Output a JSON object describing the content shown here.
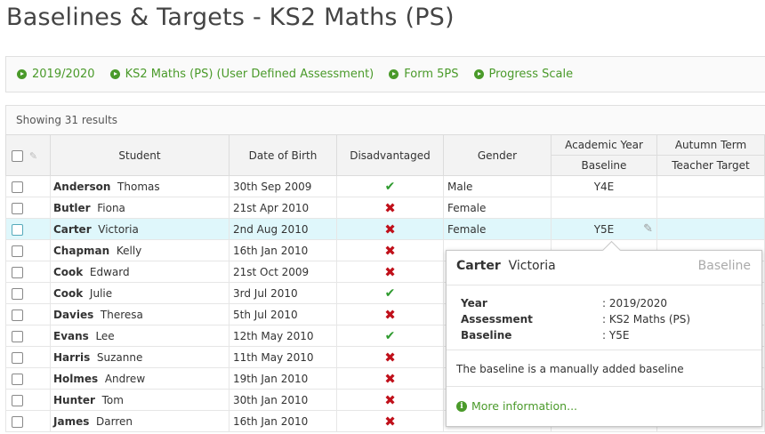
{
  "page": {
    "title": "Baselines & Targets - KS2 Maths (PS)"
  },
  "breadcrumbs": [
    "2019/2020",
    "KS2 Maths (PS) (User Defined Assessment)",
    "Form 5PS",
    "Progress Scale"
  ],
  "results_text": "Showing 31 results",
  "columns": {
    "student": "Student",
    "dob": "Date of Birth",
    "disadvantaged": "Disadvantaged",
    "gender": "Gender",
    "academic_year": "Academic Year",
    "baseline": "Baseline",
    "autumn_term": "Autumn Term",
    "teacher_target": "Teacher Target"
  },
  "rows": [
    {
      "surname": "Anderson",
      "forename": "Thomas",
      "dob": "30th Sep 2009",
      "disadvantaged": false,
      "gender": "Male",
      "baseline": "Y4E"
    },
    {
      "surname": "Butler",
      "forename": "Fiona",
      "dob": "21st Apr 2010",
      "disadvantaged": true,
      "gender": "Female",
      "baseline": ""
    },
    {
      "surname": "Carter",
      "forename": "Victoria",
      "dob": "2nd Aug 2010",
      "disadvantaged": true,
      "gender": "Female",
      "baseline": "Y5E"
    },
    {
      "surname": "Chapman",
      "forename": "Kelly",
      "dob": "16th Jan 2010",
      "disadvantaged": true,
      "gender": "",
      "baseline": ""
    },
    {
      "surname": "Cook",
      "forename": "Edward",
      "dob": "21st Oct 2009",
      "disadvantaged": true,
      "gender": "",
      "baseline": ""
    },
    {
      "surname": "Cook",
      "forename": "Julie",
      "dob": "3rd Jul 2010",
      "disadvantaged": false,
      "gender": "",
      "baseline": ""
    },
    {
      "surname": "Davies",
      "forename": "Theresa",
      "dob": "5th Jul 2010",
      "disadvantaged": true,
      "gender": "",
      "baseline": ""
    },
    {
      "surname": "Evans",
      "forename": "Lee",
      "dob": "12th May 2010",
      "disadvantaged": false,
      "gender": "",
      "baseline": ""
    },
    {
      "surname": "Harris",
      "forename": "Suzanne",
      "dob": "11th May 2010",
      "disadvantaged": true,
      "gender": "",
      "baseline": ""
    },
    {
      "surname": "Holmes",
      "forename": "Andrew",
      "dob": "19th Jan 2010",
      "disadvantaged": true,
      "gender": "",
      "baseline": ""
    },
    {
      "surname": "Hunter",
      "forename": "Tom",
      "dob": "30th Jan 2010",
      "disadvantaged": true,
      "gender": "",
      "baseline": ""
    },
    {
      "surname": "James",
      "forename": "Darren",
      "dob": "16th Jan 2010",
      "disadvantaged": true,
      "gender": "",
      "baseline": ""
    }
  ],
  "selected_row": 2,
  "tooltip": {
    "surname": "Carter",
    "forename": "Victoria",
    "label": "Baseline",
    "fields": [
      {
        "key": "Year",
        "value": ": 2019/2020"
      },
      {
        "key": "Assessment",
        "value": ": KS2 Maths (PS)"
      },
      {
        "key": "Baseline",
        "value": ": Y5E"
      }
    ],
    "note": "The baseline is a manually added baseline",
    "more_link": "More information..."
  },
  "colors": {
    "accent_green": "#4a9a2a",
    "selected_row": "#dff7fb",
    "tick": "#2e9a2e",
    "cross": "#c0101a"
  },
  "icons": {
    "tick": "check-icon",
    "cross": "cross-icon",
    "edit": "pencil-icon",
    "breadcrumb": "play-circle-icon",
    "info": "info-circle-icon"
  }
}
